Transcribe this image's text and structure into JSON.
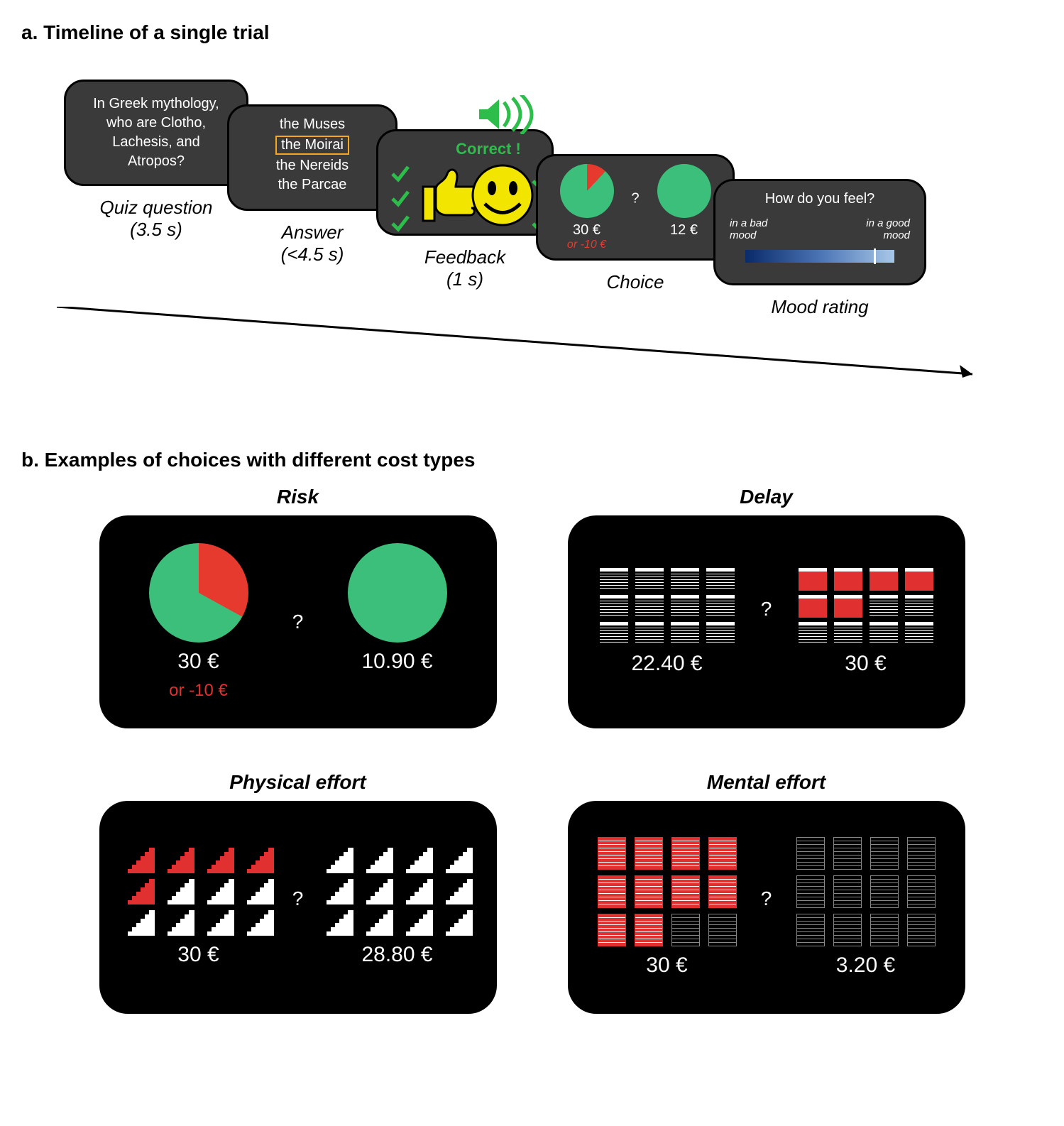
{
  "panel_a": {
    "heading": "a. Timeline of a single trial",
    "cards": {
      "quiz": {
        "lines": [
          "In Greek mythology,",
          "who are Clotho,",
          "Lachesis, and",
          "Atropos?"
        ],
        "label": "Quiz question\n(3.5 s)"
      },
      "answer": {
        "options": [
          "the Muses",
          "the Moirai",
          "the Nereids",
          "the Parcae"
        ],
        "selected_index": 1,
        "label": "Answer\n(<4.5 s)"
      },
      "feedback": {
        "text": "Correct !",
        "text_color": "#2dbd4a",
        "smiley_color": "#f2e600",
        "speaker_color": "#2dbd4a",
        "check_color": "#2dbd4a",
        "label": "Feedback\n(1 s)"
      },
      "choice": {
        "left_pie_pct_red": 12,
        "pie_green": "#3cbf7a",
        "pie_red": "#e63a2e",
        "left_value": "30 €",
        "left_alt": "or -10 €",
        "right_value": "12 €",
        "q": "?",
        "label": "Choice"
      },
      "mood": {
        "title": "How do you feel?",
        "left_label": "in a bad\nmood",
        "right_label": "in a good\nmood",
        "label": "Mood rating"
      }
    }
  },
  "panel_b": {
    "heading": "b. Examples of choices with different cost types",
    "colors": {
      "green": "#3cbf7a",
      "red": "#e63a2e",
      "white": "#ffffff",
      "grey": "#9a9a9a"
    },
    "risk": {
      "title": "Risk",
      "left_pie_red_pct": 33,
      "left_value": "30 €",
      "left_alt": "or -10 €",
      "right_value": "10.90 €",
      "q": "?"
    },
    "delay": {
      "title": "Delay",
      "left_filled": 0,
      "right_filled": 6,
      "left_value": "22.40 €",
      "right_value": "30 €",
      "q": "?"
    },
    "physical": {
      "title": "Physical effort",
      "left_filled": 5,
      "right_filled": 0,
      "left_value": "30 €",
      "right_value": "28.80 €",
      "q": "?"
    },
    "mental": {
      "title": "Mental effort",
      "left_filled": 10,
      "right_filled": 0,
      "left_value": "30 €",
      "right_value": "3.20 €",
      "q": "?"
    }
  }
}
